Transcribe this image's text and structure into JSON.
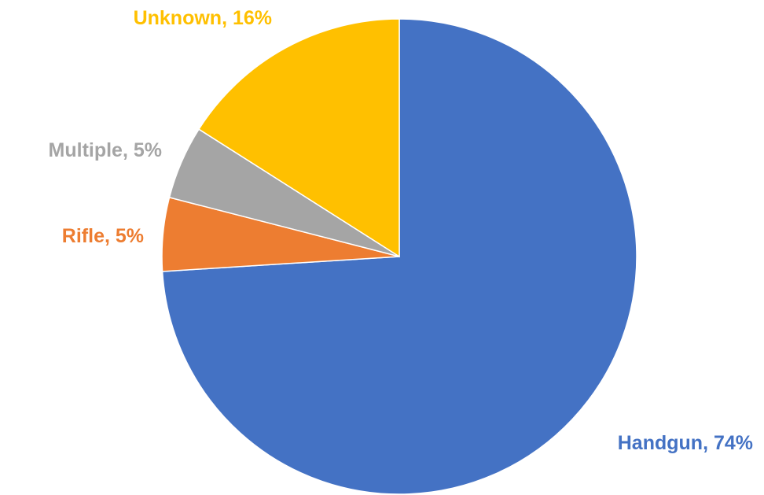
{
  "chart_data": {
    "type": "pie",
    "title": "",
    "start_angle_deg": 0,
    "direction": "clockwise",
    "slices": [
      {
        "label": "Handgun, 74%",
        "value": 74,
        "color": "#4472C4"
      },
      {
        "label": "Rifle, 5%",
        "value": 5,
        "color": "#ED7D31"
      },
      {
        "label": "Multiple, 5%",
        "value": 5,
        "color": "#A5A5A5"
      },
      {
        "label": "Unknown, 16%",
        "value": 16,
        "color": "#FFC000"
      }
    ]
  }
}
